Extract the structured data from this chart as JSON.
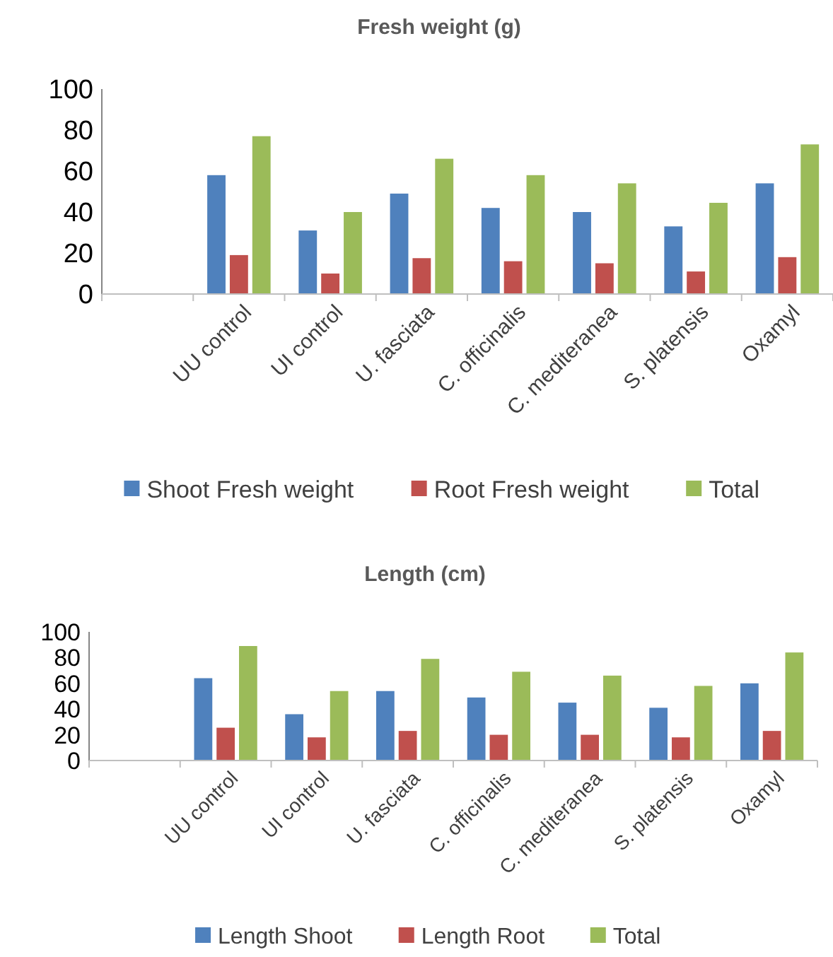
{
  "chart_data": [
    {
      "type": "bar",
      "title": "Fresh weight (g)",
      "categories": [
        null,
        "UU control",
        "UI  control",
        "U. fasciata",
        "C. officinalis",
        "C. mediteranea",
        "S. platensis",
        "Oxamyl"
      ],
      "ylim": [
        0,
        100
      ],
      "yticks": [
        0,
        20,
        40,
        60,
        80,
        100
      ],
      "grid": false,
      "legend": "bottom",
      "series": [
        {
          "name": "Shoot Fresh weight",
          "color": "#4f81bd",
          "values": [
            null,
            58,
            31,
            49,
            42,
            40,
            33,
            54
          ]
        },
        {
          "name": "Root Fresh weight",
          "color": "#c0504d",
          "values": [
            null,
            19,
            10,
            17.5,
            16,
            15,
            11,
            18
          ]
        },
        {
          "name": "Total",
          "color": "#9bbb59",
          "values": [
            null,
            77,
            40,
            66,
            58,
            54,
            44.5,
            73
          ]
        }
      ]
    },
    {
      "type": "bar",
      "title": "Length (cm)",
      "categories": [
        null,
        "UU control",
        "UI  control",
        "U. fasciata",
        "C. officinalis",
        "C. mediteranea",
        "S. platensis",
        "Oxamyl"
      ],
      "ylim": [
        0,
        100
      ],
      "yticks": [
        0,
        20,
        40,
        60,
        80,
        100
      ],
      "grid": false,
      "legend": "bottom",
      "series": [
        {
          "name": "Length Shoot",
          "color": "#4f81bd",
          "values": [
            null,
            64,
            36,
            54,
            49,
            45,
            41,
            60
          ]
        },
        {
          "name": "Length Root",
          "color": "#c0504d",
          "values": [
            null,
            25.5,
            18,
            23,
            20,
            20,
            18,
            23
          ]
        },
        {
          "name": "Total",
          "color": "#9bbb59",
          "values": [
            null,
            89,
            54,
            79,
            69,
            66,
            58,
            84
          ]
        }
      ]
    }
  ]
}
